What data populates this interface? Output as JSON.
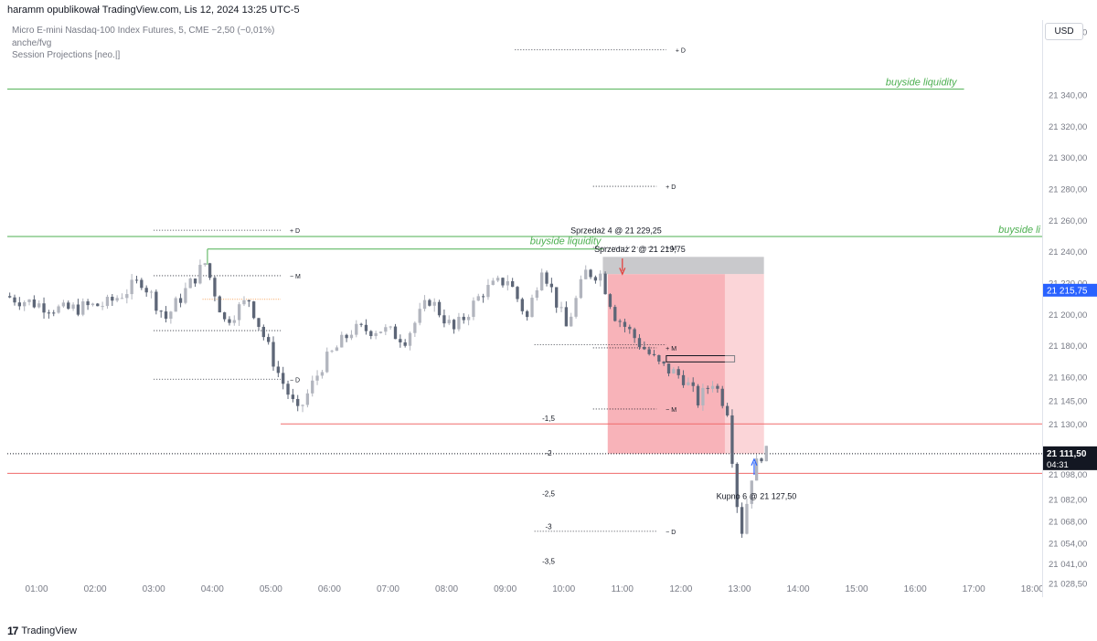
{
  "header": {
    "publisher_line": "haramm opublikował TradingView.com, Lis 12, 2024 13:25 UTC-5"
  },
  "legend": {
    "symbol_line": "Micro E-mini Nasdaq-100 Index Futures, 5, CME  −2,50 (−0,01%)",
    "indicator_1": "anche/fvg",
    "indicator_2": "Session Projections [neo.|]"
  },
  "price_axis": {
    "currency": "USD"
  },
  "footer": {
    "brand": "TradingView",
    "brand_mark": "17"
  },
  "colors": {
    "bull": "#b2b5be",
    "bear": "#5d6677",
    "liquidity": "#4caf50",
    "level": "#f06a6a",
    "sell_zone": "#f7a6ad",
    "blue_tag": "#2962ff"
  },
  "chart_data": {
    "type": "candlestick",
    "symbol": "Micro E-mini Nasdaq-100 Index Futures",
    "timeframe": "5",
    "exchange": "CME",
    "ylim": [
      21020,
      21388
    ],
    "xlim": [
      "00:30",
      "18:10"
    ],
    "price_ticks": [
      "21 380,00",
      "21 340,00",
      "21 320,00",
      "21 300,00",
      "21 280,00",
      "21 260,00",
      "21 240,00",
      "21 220,00",
      "21 200,00",
      "21 180,00",
      "21 160,00",
      "21 145,00",
      "21 130,00",
      "21 098,00",
      "21 082,00",
      "21 068,00",
      "21 054,00",
      "21 041,00",
      "21 028,50"
    ],
    "time_ticks": [
      "01:00",
      "02:00",
      "03:00",
      "04:00",
      "05:00",
      "06:00",
      "07:00",
      "08:00",
      "09:00",
      "10:00",
      "11:00",
      "12:00",
      "13:00",
      "14:00",
      "15:00",
      "16:00",
      "17:00",
      "18:00"
    ],
    "last_price": {
      "label": "21 111,50",
      "value": 21111.5,
      "countdown": "04:31"
    },
    "crosshair_price": {
      "label": "21 215,75",
      "value": 21215.75
    },
    "anchors": [
      {
        "t": "00:30",
        "p": 21212
      },
      {
        "t": "01:30",
        "p": 21203
      },
      {
        "t": "02:15",
        "p": 21207
      },
      {
        "t": "02:50",
        "p": 21222
      },
      {
        "t": "03:15",
        "p": 21198
      },
      {
        "t": "03:55",
        "p": 21233
      },
      {
        "t": "04:15",
        "p": 21196
      },
      {
        "t": "04:40",
        "p": 21210
      },
      {
        "t": "05:10",
        "p": 21163
      },
      {
        "t": "05:30",
        "p": 21137
      },
      {
        "t": "05:55",
        "p": 21168
      },
      {
        "t": "06:25",
        "p": 21190
      },
      {
        "t": "06:55",
        "p": 21191
      },
      {
        "t": "07:20",
        "p": 21185
      },
      {
        "t": "07:45",
        "p": 21210
      },
      {
        "t": "08:10",
        "p": 21190
      },
      {
        "t": "08:40",
        "p": 21215
      },
      {
        "t": "09:05",
        "p": 21223
      },
      {
        "t": "09:25",
        "p": 21198
      },
      {
        "t": "09:40",
        "p": 21232
      },
      {
        "t": "10:05",
        "p": 21192
      },
      {
        "t": "10:25",
        "p": 21227
      },
      {
        "t": "10:40",
        "p": 21226
      },
      {
        "t": "10:55",
        "p": 21200
      },
      {
        "t": "11:20",
        "p": 21182
      },
      {
        "t": "11:40",
        "p": 21168
      },
      {
        "t": "12:05",
        "p": 21160
      },
      {
        "t": "12:20",
        "p": 21145
      },
      {
        "t": "12:35",
        "p": 21158
      },
      {
        "t": "12:50",
        "p": 21140
      },
      {
        "t": "13:00",
        "p": 21080
      },
      {
        "t": "13:05",
        "p": 21063
      },
      {
        "t": "13:15",
        "p": 21098
      },
      {
        "t": "13:25",
        "p": 21111.5
      }
    ],
    "horizontal_lines": [
      {
        "name": "buyside-liquidity-upper",
        "price": 21344,
        "x_start": "00:30",
        "x_end": "16:50",
        "color": "#4caf50",
        "label": "buyside liquidity"
      },
      {
        "name": "buyside-liquidity-mid",
        "price": 21250,
        "x_start": "00:30",
        "x_end": "18:10",
        "color": "#4caf50",
        "label": "buyside li"
      },
      {
        "name": "buyside-liquidity-local",
        "price": 21242,
        "x_start": "03:55",
        "x_end": "10:40",
        "color": "#4caf50",
        "label": "buyside liquidity"
      },
      {
        "name": "red-level-upper",
        "price": 21130.5,
        "x_start": "05:10",
        "x_end": "18:10",
        "color": "#f06a6a"
      },
      {
        "name": "red-level-lower",
        "price": 21099,
        "x_start": "00:30",
        "x_end": "18:10",
        "color": "#f06a6a"
      },
      {
        "name": "last-price-dotted",
        "price": 21111.5,
        "x_start": "00:30",
        "x_end": "18:10",
        "color": "#131722"
      }
    ],
    "projections": [
      {
        "price": 21369,
        "x_start": "09:10",
        "x_end": "11:45",
        "label": "+ D"
      },
      {
        "price": 21282,
        "x_start": "10:30",
        "x_end": "11:35",
        "label": "+ D"
      },
      {
        "price": 21254,
        "x_start": "03:00",
        "x_end": "05:10",
        "label": "+ D"
      },
      {
        "price": 21243,
        "x_start": "10:30",
        "x_end": "11:35",
        "label": "+ M"
      },
      {
        "price": 21225,
        "x_start": "03:00",
        "x_end": "05:10",
        "label": "− M"
      },
      {
        "price": 21190,
        "x_start": "03:00",
        "x_end": "05:10",
        "label": ""
      },
      {
        "price": 21181,
        "x_start": "09:30",
        "x_end": "11:45",
        "label": ""
      },
      {
        "price": 21179,
        "x_start": "10:30",
        "x_end": "11:35",
        "label": "+ M"
      },
      {
        "price": 21159,
        "x_start": "03:00",
        "x_end": "05:10",
        "label": "− D"
      },
      {
        "price": 21140,
        "x_start": "10:30",
        "x_end": "11:35",
        "label": "− M"
      },
      {
        "price": 21062,
        "x_start": "09:30",
        "x_end": "11:35",
        "label": "− D"
      }
    ],
    "std_labels": [
      {
        "text": "-1,5",
        "price": 21134
      },
      {
        "text": "-2",
        "price": 21112
      },
      {
        "text": "-2,5",
        "price": 21086
      },
      {
        "text": "-3",
        "price": 21065
      },
      {
        "text": "-3,5",
        "price": 21043
      }
    ],
    "trades": [
      {
        "label": "Sprzedaż 4 @ 21 229,25",
        "t": "10:35",
        "price": 21229.25,
        "side": "sell"
      },
      {
        "label": "Sprzedaż 2 @ 21 219,75",
        "t": "10:50",
        "price": 21219.75,
        "side": "sell"
      },
      {
        "label": "Kupno 6 @ 21 127,50",
        "t": "13:15",
        "price": 21127.5,
        "side": "buy"
      }
    ],
    "zones": [
      {
        "name": "short-position-stop",
        "x_start": "10:40",
        "x_end": "13:25",
        "p_top": 21237,
        "p_bottom": 21226
      },
      {
        "name": "short-position-risk",
        "x_start": "10:45",
        "x_end": "13:25",
        "p_top": 21226,
        "p_bottom": 21111.5
      },
      {
        "name": "fvg-box",
        "x_start": "11:45",
        "x_end": "12:55",
        "p_top": 21174,
        "p_bottom": 21170
      }
    ],
    "orange_level": {
      "price": 21210,
      "x_start": "03:50",
      "x_end": "05:10"
    },
    "grid": false,
    "legend_position": "top-left"
  }
}
